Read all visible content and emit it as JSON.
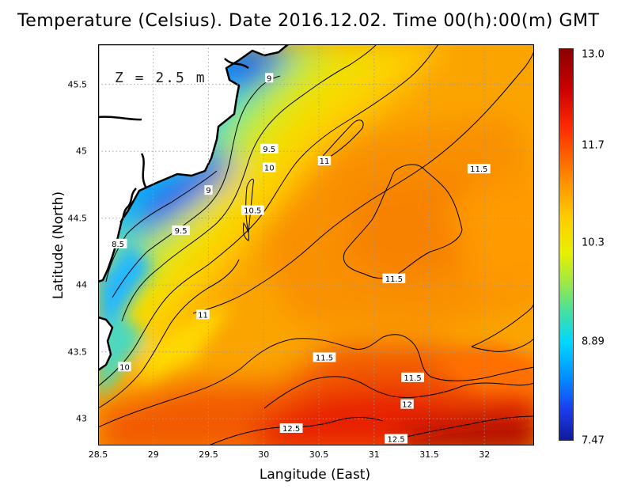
{
  "title": "Temperature (Celsius). Date 2016.12.02. Time 00(h):00(m) GMT",
  "depth_label": "Z = 2.5 m",
  "axes": {
    "xlabel": "Langitude (East)",
    "ylabel": "Latitude (North)",
    "xticks": [
      "28.5",
      "29",
      "29.5",
      "30",
      "30.5",
      "31",
      "31.5",
      "32"
    ],
    "yticks": [
      "45.5",
      "45",
      "44.5",
      "44",
      "43.5",
      "43"
    ],
    "xrange": [
      28.5,
      32.45
    ],
    "yrange": [
      42.8,
      45.8
    ]
  },
  "colorbar": {
    "ticks": [
      "13.0",
      "11.7",
      "10.3",
      "8.89",
      "7.47"
    ],
    "min": 7.47,
    "max": 13.0
  },
  "contour_labels": [
    {
      "text": "9",
      "lon": 30.05,
      "lat": 45.55
    },
    {
      "text": "9.5",
      "lon": 30.05,
      "lat": 45.02
    },
    {
      "text": "10",
      "lon": 30.05,
      "lat": 44.88
    },
    {
      "text": "11",
      "lon": 30.55,
      "lat": 44.93
    },
    {
      "text": "11.5",
      "lon": 31.95,
      "lat": 44.87
    },
    {
      "text": "9",
      "lon": 29.5,
      "lat": 44.71
    },
    {
      "text": "10.5",
      "lon": 29.9,
      "lat": 44.56
    },
    {
      "text": "9.5",
      "lon": 29.25,
      "lat": 44.41
    },
    {
      "text": "8.5",
      "lon": 28.68,
      "lat": 44.31
    },
    {
      "text": "11.5",
      "lon": 31.18,
      "lat": 44.05
    },
    {
      "text": "11",
      "lon": 29.45,
      "lat": 43.78
    },
    {
      "text": "11.5",
      "lon": 30.55,
      "lat": 43.46
    },
    {
      "text": "10",
      "lon": 28.74,
      "lat": 43.39
    },
    {
      "text": "11.5",
      "lon": 31.35,
      "lat": 43.31
    },
    {
      "text": "12",
      "lon": 31.3,
      "lat": 43.11
    },
    {
      "text": "12.5",
      "lon": 30.25,
      "lat": 42.93
    },
    {
      "text": "12.5",
      "lon": 31.2,
      "lat": 42.85
    }
  ],
  "colors": {
    "land": "#ffffff",
    "coast": "#000000",
    "contour": "#000000",
    "grid": "#9a9a9a"
  }
}
